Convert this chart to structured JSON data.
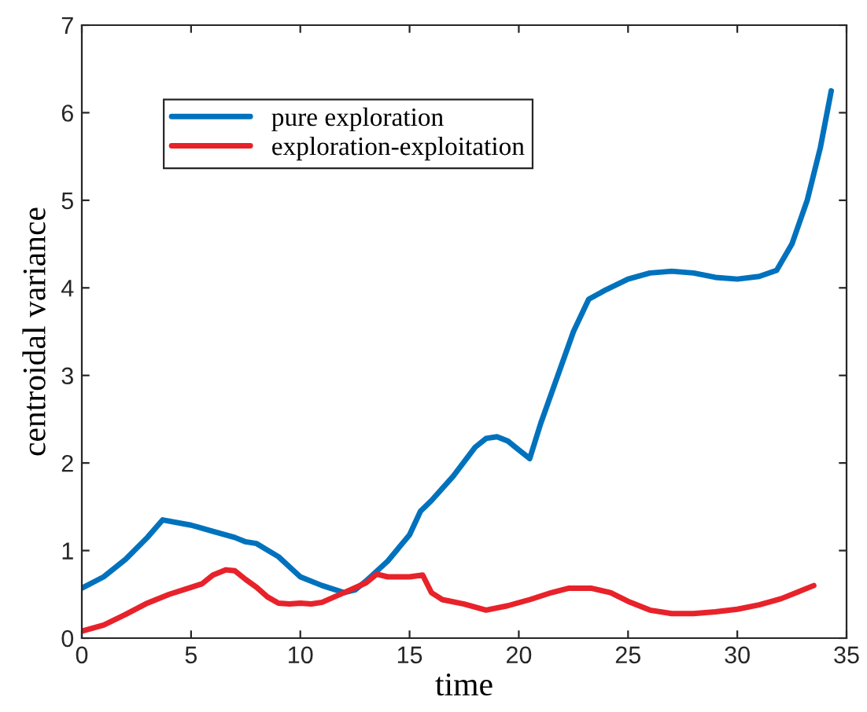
{
  "chart_data": {
    "type": "line",
    "xlabel": "time",
    "ylabel": "centroidal variance",
    "xlim": [
      0,
      35
    ],
    "ylim": [
      0,
      7
    ],
    "xticks": [
      0,
      5,
      10,
      15,
      20,
      25,
      30,
      35
    ],
    "yticks": [
      0,
      1,
      2,
      3,
      4,
      5,
      6,
      7
    ],
    "grid": false,
    "legend": "top left",
    "marker": "none",
    "line_style": "solid",
    "series": [
      {
        "name": "pure exploration",
        "color": "#0072bd",
        "x": [
          0,
          1,
          2,
          3,
          3.7,
          5,
          6,
          7,
          7.5,
          8,
          9,
          10,
          11,
          12,
          12.5,
          13,
          14,
          15,
          15.5,
          16,
          17,
          18,
          18.5,
          19,
          19.5,
          20,
          20.5,
          21,
          22,
          22.5,
          23.2,
          24,
          25,
          26,
          27,
          28,
          29,
          30,
          31,
          31.8,
          32.5,
          33.2,
          33.8,
          34.3
        ],
        "values": [
          0.57,
          0.7,
          0.9,
          1.15,
          1.35,
          1.29,
          1.22,
          1.15,
          1.1,
          1.08,
          0.93,
          0.7,
          0.6,
          0.52,
          0.55,
          0.65,
          0.88,
          1.18,
          1.45,
          1.57,
          1.85,
          2.18,
          2.28,
          2.3,
          2.25,
          2.15,
          2.05,
          2.45,
          3.15,
          3.5,
          3.87,
          3.98,
          4.1,
          4.17,
          4.19,
          4.17,
          4.12,
          4.1,
          4.13,
          4.2,
          4.5,
          5.0,
          5.6,
          6.25
        ]
      },
      {
        "name": "exploration-exploitation",
        "color": "#e8222a",
        "x": [
          0,
          1,
          2,
          3,
          4,
          5,
          5.5,
          6,
          6.6,
          7,
          7.5,
          8,
          8.5,
          9,
          9.5,
          10,
          10.5,
          11,
          12,
          13,
          13.5,
          14,
          15,
          15.6,
          16,
          16.5,
          17.5,
          18.5,
          19.5,
          20.5,
          21.5,
          22.3,
          23.3,
          24.2,
          25,
          26,
          27,
          28,
          29,
          30,
          31,
          32,
          33.5
        ],
        "values": [
          0.08,
          0.15,
          0.27,
          0.4,
          0.5,
          0.58,
          0.62,
          0.72,
          0.78,
          0.77,
          0.67,
          0.58,
          0.47,
          0.4,
          0.39,
          0.4,
          0.39,
          0.41,
          0.52,
          0.63,
          0.73,
          0.7,
          0.7,
          0.72,
          0.52,
          0.44,
          0.39,
          0.32,
          0.37,
          0.44,
          0.52,
          0.57,
          0.57,
          0.52,
          0.42,
          0.32,
          0.28,
          0.28,
          0.3,
          0.33,
          0.38,
          0.45,
          0.6
        ]
      }
    ]
  }
}
